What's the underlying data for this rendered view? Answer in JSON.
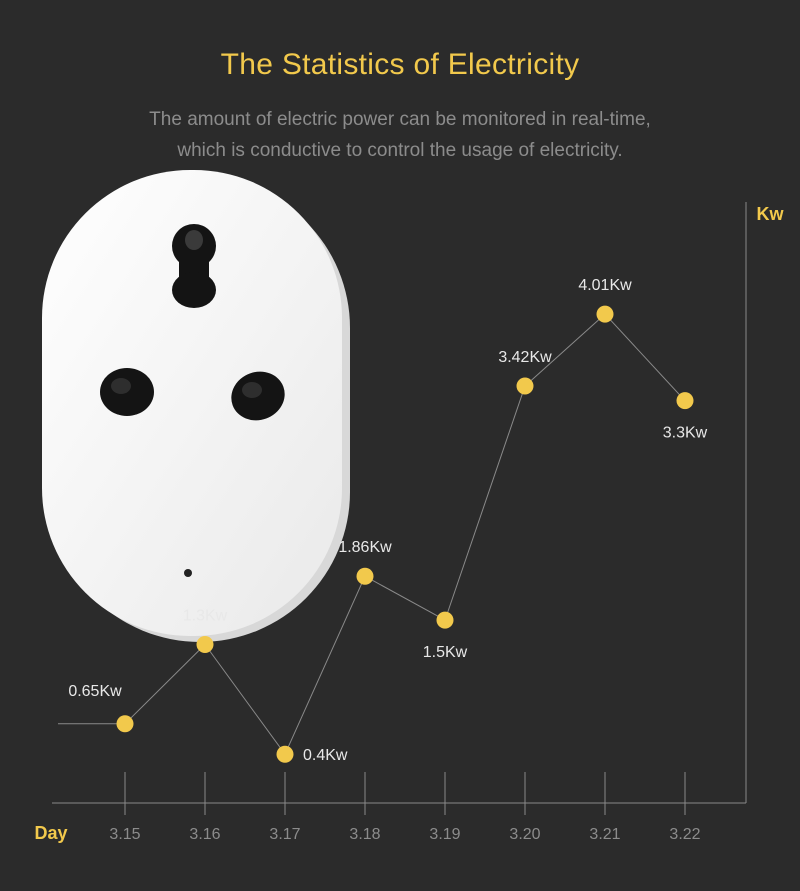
{
  "header": {
    "title": "The Statistics of Electricity",
    "subtitle_line1": "The amount of electric power can be monitored in real-time,",
    "subtitle_line2": "which is conductive to control the usage of electricity."
  },
  "colors": {
    "background": "#2b2b2b",
    "accent": "#f2c94c",
    "axis": "#8a8a8a",
    "text_muted": "#8c8c8c",
    "label": "#e8e8e8"
  },
  "product_image": {
    "icon": "smart-plug-socket"
  },
  "chart_data": {
    "type": "line",
    "title": "The Statistics of Electricity",
    "xlabel": "Day",
    "ylabel": "Kw",
    "categories": [
      "3.15",
      "3.16",
      "3.17",
      "3.18",
      "3.19",
      "3.20",
      "3.21",
      "3.22"
    ],
    "values": [
      0.65,
      1.3,
      0.4,
      1.86,
      1.5,
      3.42,
      4.01,
      3.3
    ],
    "data_labels": [
      "0.65Kw",
      "1.3Kw",
      "0.4Kw",
      "1.86Kw",
      "1.5Kw",
      "3.42Kw",
      "4.01Kw",
      "3.3Kw"
    ],
    "ylim": [
      0,
      6.5
    ],
    "grid": false,
    "legend": "none"
  }
}
